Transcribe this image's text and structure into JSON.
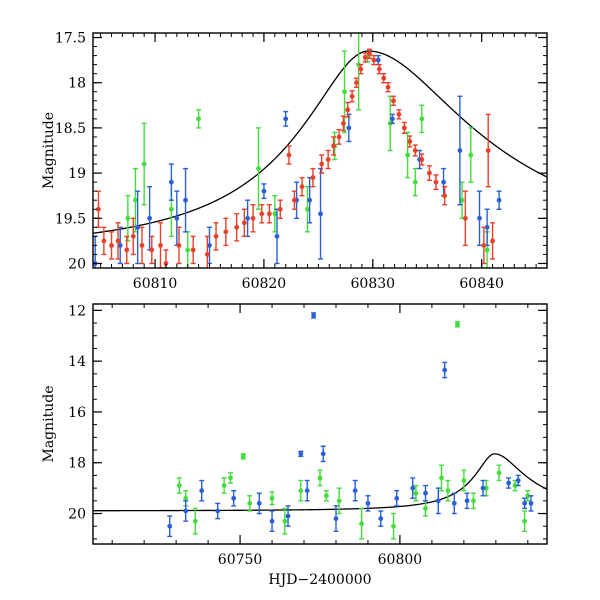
{
  "chart_data": [
    {
      "type": "scatter",
      "panel": "top",
      "title": "",
      "xlabel": "",
      "ylabel": "Magnitude",
      "xlim": [
        60804.3,
        60846
      ],
      "ylim": [
        20.05,
        17.45
      ],
      "y_inverted": true,
      "xticks": [
        60810,
        60820,
        60830,
        60840
      ],
      "yticks": [
        17.5,
        18,
        18.5,
        19,
        19.5,
        20
      ],
      "grid": false,
      "legend": "none",
      "colors": [
        "#e8402a",
        "#2a5fd6",
        "#44dd3c",
        "#000000"
      ],
      "model": {
        "t0": 60829.6,
        "peak_mag": 17.65,
        "base_mag": 19.9,
        "tau_rise": 4.8,
        "tau_fall": 7.5
      },
      "series": [
        {
          "color": "#44dd3c",
          "points": [
            [
              60807.5,
              19.5,
              0.25
            ],
            [
              60808.2,
              19.3,
              0.35
            ],
            [
              60809,
              18.9,
              0.45
            ],
            [
              60811.5,
              19.4,
              0.3
            ],
            [
              60813,
              19.85,
              0.2
            ],
            [
              60814,
              18.4,
              0.1
            ],
            [
              60819.5,
              18.95,
              0.45
            ],
            [
              60821,
              19.45,
              0.2
            ],
            [
              60824,
              19.4,
              0.25
            ],
            [
              60826.5,
              18.7,
              0.15
            ],
            [
              60827.4,
              18.1,
              0.45
            ],
            [
              60828.7,
              17.8,
              0.5
            ],
            [
              60829.5,
              17.72,
              0.05
            ],
            [
              60831.6,
              18.45,
              0.3
            ],
            [
              60833.2,
              18.8,
              0.25
            ],
            [
              60833.9,
              19.1,
              0.15
            ],
            [
              60834.5,
              18.4,
              0.15
            ],
            [
              60838.2,
              19.3,
              0.2
            ],
            [
              60839,
              18.8,
              0.3
            ],
            [
              60840.5,
              19.85,
              0.2
            ]
          ]
        },
        {
          "color": "#2a5fd6",
          "points": [
            [
              60804.5,
              20,
              0.3
            ],
            [
              60806.8,
              19.8,
              0.2
            ],
            [
              60808.4,
              19.6,
              0.4
            ],
            [
              60809.5,
              19.5,
              0.35
            ],
            [
              60811.5,
              19.1,
              0.2
            ],
            [
              60812,
              19.5,
              0.3
            ],
            [
              60812.8,
              19.3,
              0.35
            ],
            [
              60815,
              19.8,
              0.2
            ],
            [
              60818.5,
              19.5,
              0.2
            ],
            [
              60820,
              19.2,
              0.08
            ],
            [
              60821.2,
              19.7,
              0.3
            ],
            [
              60822,
              18.4,
              0.08
            ],
            [
              60823,
              19.3,
              0.2
            ],
            [
              60824.2,
              19.3,
              0.25
            ],
            [
              60825.2,
              19.45,
              0.5
            ],
            [
              60827.8,
              18.5,
              0.15
            ],
            [
              60830.5,
              17.75,
              0.05
            ],
            [
              60831.8,
              18.4,
              0.05
            ],
            [
              60834.3,
              18.85,
              0.1
            ],
            [
              60836.5,
              19.1,
              0.15
            ],
            [
              60838,
              18.75,
              0.6
            ],
            [
              60839.8,
              19.5,
              0.3
            ],
            [
              60840.5,
              19.6,
              0.2
            ],
            [
              60841.6,
              19.3,
              0.1
            ]
          ]
        },
        {
          "color": "#e8402a",
          "points": [
            [
              60804.8,
              19.4,
              0.2
            ],
            [
              60805.3,
              19.75,
              0.15
            ],
            [
              60806,
              19.8,
              0.15
            ],
            [
              60806.6,
              19.75,
              0.2
            ],
            [
              60807.4,
              19.85,
              0.15
            ],
            [
              60808,
              19.7,
              0.2
            ],
            [
              60808.8,
              19.8,
              0.2
            ],
            [
              60809.7,
              19.85,
              0.15
            ],
            [
              60810.5,
              19.8,
              0.25
            ],
            [
              60811,
              20,
              0.15
            ],
            [
              60812.2,
              19.8,
              0.2
            ],
            [
              60813.5,
              19.85,
              0.15
            ],
            [
              60814.8,
              19.9,
              0.2
            ],
            [
              60815.6,
              19.7,
              0.15
            ],
            [
              60816.5,
              19.65,
              0.15
            ],
            [
              60817.5,
              19.6,
              0.15
            ],
            [
              60818.2,
              19.55,
              0.15
            ],
            [
              60819,
              19.5,
              0.15
            ],
            [
              60819.8,
              19.45,
              0.1
            ],
            [
              60820.5,
              19.45,
              0.1
            ],
            [
              60821.5,
              19.4,
              0.1
            ],
            [
              60822.3,
              18.8,
              0.1
            ],
            [
              60822.8,
              19.3,
              0.1
            ],
            [
              60823.5,
              19.15,
              0.1
            ],
            [
              60824.5,
              19.05,
              0.1
            ],
            [
              60825.3,
              18.9,
              0.1
            ],
            [
              60825.9,
              18.85,
              0.1
            ],
            [
              60826.4,
              18.7,
              0.1
            ],
            [
              60826.9,
              18.6,
              0.08
            ],
            [
              60827.3,
              18.45,
              0.08
            ],
            [
              60827.7,
              18.3,
              0.08
            ],
            [
              60828.1,
              18.15,
              0.06
            ],
            [
              60828.5,
              18,
              0.05
            ],
            [
              60828.9,
              17.85,
              0.05
            ],
            [
              60829.3,
              17.72,
              0.05
            ],
            [
              60829.7,
              17.68,
              0.05
            ],
            [
              60830.1,
              17.75,
              0.05
            ],
            [
              60830.6,
              17.85,
              0.05
            ],
            [
              60831,
              17.95,
              0.05
            ],
            [
              60831.4,
              18.05,
              0.05
            ],
            [
              60831.9,
              18.2,
              0.05
            ],
            [
              60832.4,
              18.35,
              0.05
            ],
            [
              60832.9,
              18.5,
              0.06
            ],
            [
              60833.4,
              18.65,
              0.06
            ],
            [
              60833.9,
              18.75,
              0.06
            ],
            [
              60834.5,
              18.85,
              0.06
            ],
            [
              60835.2,
              19,
              0.08
            ],
            [
              60835.8,
              19.1,
              0.08
            ],
            [
              60836.6,
              19.25,
              0.1
            ],
            [
              60838.5,
              19.5,
              0.3
            ],
            [
              60840.2,
              19.8,
              0.2
            ],
            [
              60840.6,
              18.75,
              0.4
            ],
            [
              60841,
              19.75,
              0.2
            ]
          ]
        }
      ]
    },
    {
      "type": "scatter",
      "panel": "bottom",
      "title": "",
      "xlabel": "HJD−2400000",
      "ylabel": "Magnitude",
      "xlim": [
        60704,
        60846
      ],
      "ylim": [
        21.2,
        11.75
      ],
      "y_inverted": true,
      "xticks": [
        60750,
        60800
      ],
      "yticks": [
        12,
        14,
        16,
        18,
        20
      ],
      "grid": false,
      "legend": "none",
      "colors": [
        "#e8402a",
        "#2a5fd6",
        "#44dd3c",
        "#000000"
      ],
      "model": {
        "t0": 60829.6,
        "peak_mag": 17.65,
        "base_mag": 19.9,
        "tau_rise": 4.8,
        "tau_fall": 7.5
      },
      "series": [
        {
          "color": "#44dd3c",
          "points": [
            [
              60731,
              18.9,
              0.3
            ],
            [
              60733,
              19.4,
              0.3
            ],
            [
              60736,
              20.3,
              0.5
            ],
            [
              60745,
              18.9,
              0.3
            ],
            [
              60747,
              18.6,
              0.2
            ],
            [
              60751,
              17.75,
              0.1
            ],
            [
              60753,
              19.6,
              0.3
            ],
            [
              60760,
              19.4,
              0.25
            ],
            [
              60764,
              20.3,
              0.5
            ],
            [
              60769,
              19.1,
              0.4
            ],
            [
              60775,
              18.6,
              0.3
            ],
            [
              60777,
              19.3,
              0.2
            ],
            [
              60781,
              19.5,
              0.5
            ],
            [
              60788,
              20.4,
              0.6
            ],
            [
              60798,
              20.5,
              0.5
            ],
            [
              60805,
              19.2,
              0.3
            ],
            [
              60808,
              19.8,
              0.3
            ],
            [
              60813,
              18.6,
              0.5
            ],
            [
              60815,
              19.1,
              0.4
            ],
            [
              60818,
              12.55,
              0.1
            ],
            [
              60820,
              18.7,
              0.4
            ],
            [
              60823,
              19.5,
              0.3
            ],
            [
              60827,
              19,
              0.3
            ],
            [
              60831,
              18.4,
              0.3
            ],
            [
              60836,
              18.9,
              0.2
            ],
            [
              60839,
              20.3,
              0.4
            ],
            [
              60840,
              19.3,
              0.2
            ]
          ]
        },
        {
          "color": "#2a5fd6",
          "points": [
            [
              60728,
              20.5,
              0.4
            ],
            [
              60733,
              19.9,
              0.4
            ],
            [
              60738,
              19.1,
              0.4
            ],
            [
              60743,
              19.9,
              0.3
            ],
            [
              60748,
              19.4,
              0.3
            ],
            [
              60756,
              19.6,
              0.4
            ],
            [
              60760,
              20.3,
              0.4
            ],
            [
              60765,
              20.1,
              0.4
            ],
            [
              60769,
              17.65,
              0.1
            ],
            [
              60771,
              19.1,
              0.4
            ],
            [
              60773,
              12.2,
              0.1
            ],
            [
              60776,
              17.65,
              0.3
            ],
            [
              60780,
              20.2,
              0.5
            ],
            [
              60786,
              19.1,
              0.4
            ],
            [
              60790,
              19.6,
              0.3
            ],
            [
              60794,
              20.2,
              0.3
            ],
            [
              60799,
              19.4,
              0.3
            ],
            [
              60804,
              19,
              0.4
            ],
            [
              60808,
              19.2,
              0.3
            ],
            [
              60812,
              19.5,
              0.5
            ],
            [
              60814,
              14.35,
              0.3
            ],
            [
              60817,
              19.6,
              0.4
            ],
            [
              60821,
              19.5,
              0.3
            ],
            [
              60826,
              19,
              0.3
            ],
            [
              60834,
              18.8,
              0.2
            ],
            [
              60837,
              18.7,
              0.2
            ],
            [
              60839,
              19.6,
              0.2
            ],
            [
              60841,
              19.6,
              0.3
            ]
          ]
        }
      ]
    }
  ]
}
